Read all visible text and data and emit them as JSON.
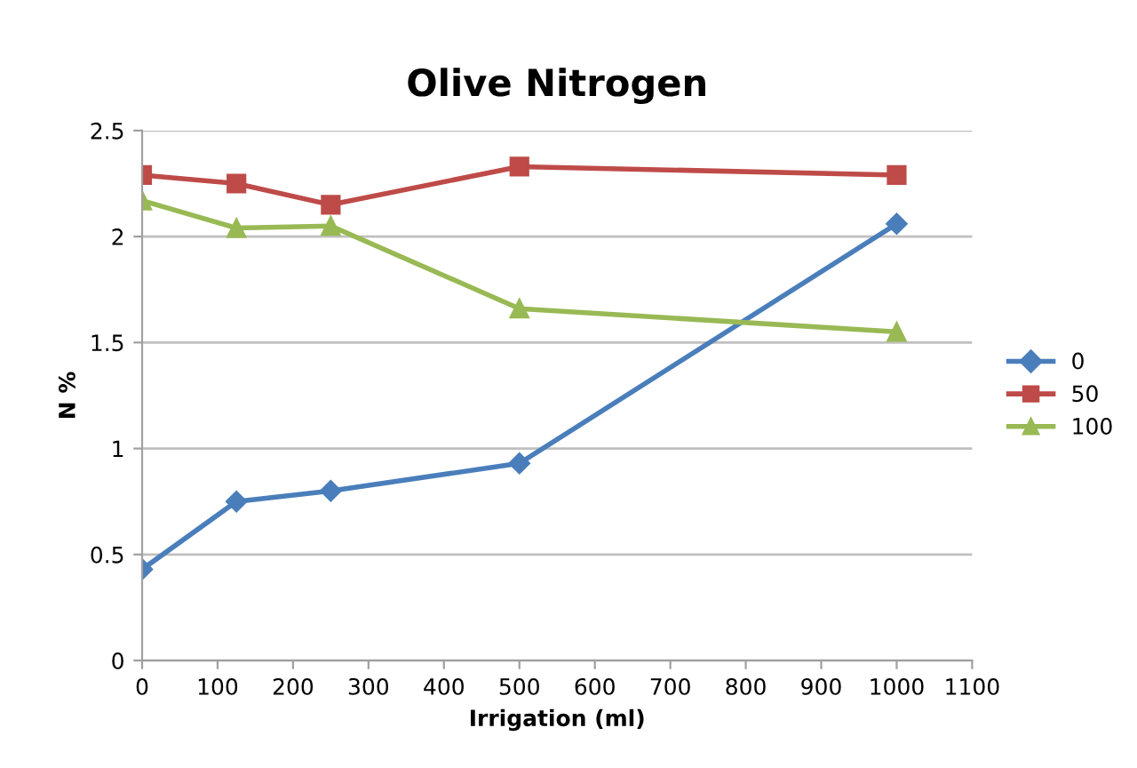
{
  "chart_data": {
    "type": "line",
    "title": "Olive Nitrogen",
    "xlabel": "Irrigation (ml)",
    "ylabel": "N %",
    "x": [
      0,
      125,
      250,
      500,
      1000
    ],
    "series": [
      {
        "name": "0",
        "color": "#4a7ebb",
        "marker": "diamond",
        "values": [
          0.43,
          0.75,
          0.8,
          0.93,
          2.06
        ]
      },
      {
        "name": "50",
        "color": "#be4b48",
        "marker": "square",
        "values": [
          2.29,
          2.25,
          2.15,
          2.33,
          2.29
        ]
      },
      {
        "name": "100",
        "color": "#98b954",
        "marker": "triangle",
        "values": [
          2.17,
          2.04,
          2.05,
          1.66,
          1.55
        ]
      }
    ],
    "xlim": [
      0,
      1100
    ],
    "xticks": [
      0,
      100,
      200,
      300,
      400,
      500,
      600,
      700,
      800,
      900,
      1000,
      1100
    ],
    "ylim": [
      0,
      2.5
    ],
    "yticks": [
      0,
      0.5,
      1,
      1.5,
      2,
      2.5
    ],
    "grid": "y",
    "legend": "right",
    "line_style": "solid"
  }
}
